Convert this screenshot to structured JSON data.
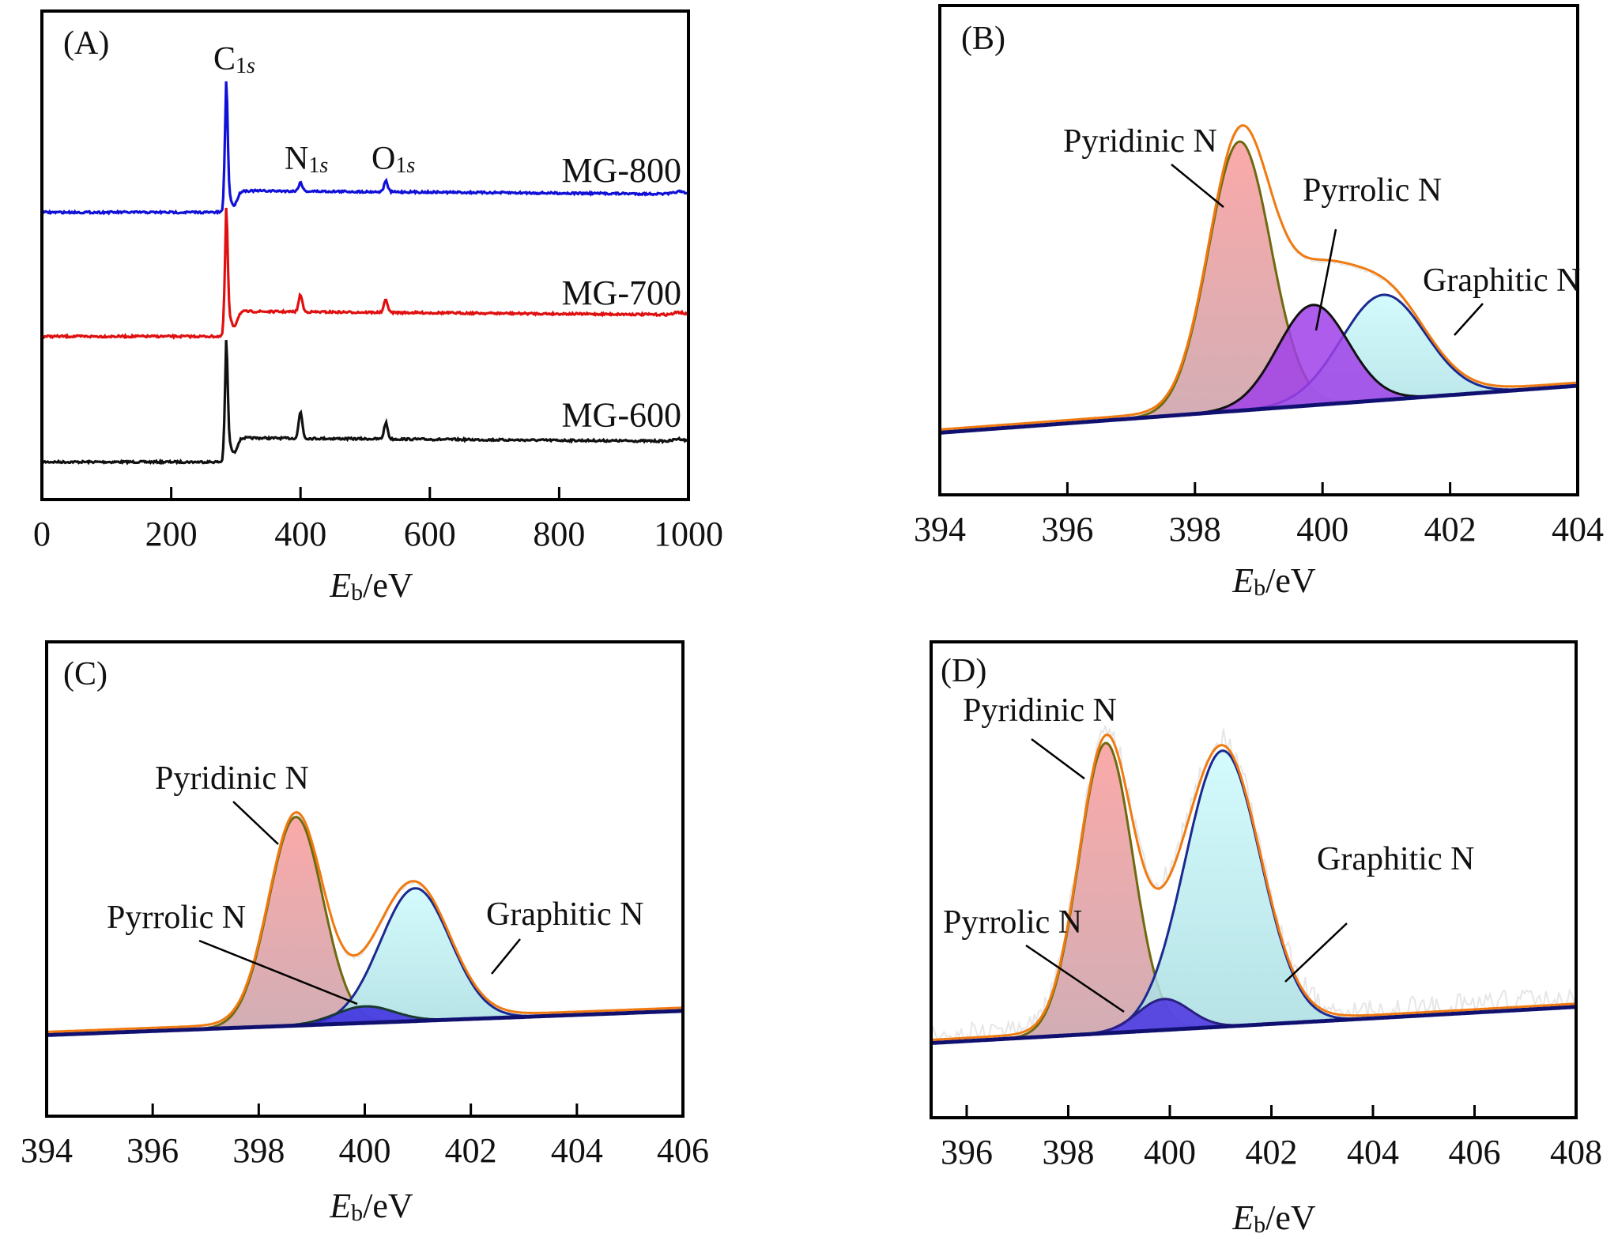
{
  "chart_data": [
    {
      "panel": "(A)",
      "type": "line",
      "title": "",
      "xlabel_main": "E",
      "xlabel_sub": "b",
      "xlabel_unit": "/eV",
      "ylabel": "",
      "xlim": [
        0,
        1000
      ],
      "xticks": [
        0,
        200,
        400,
        600,
        800,
        1000
      ],
      "yticks": [],
      "peak_labels": [
        {
          "main": "C",
          "sub": "1s",
          "x": 285
        },
        {
          "main": "N",
          "sub": "1s",
          "x": 400
        },
        {
          "main": "O",
          "sub": "1s",
          "x": 532
        }
      ],
      "series": [
        {
          "name": "MG-800",
          "color": "#1010d8",
          "baseline_low": 0.412,
          "baseline_high": 0.368,
          "c1s_peak": 0.143,
          "n1s_peak": 0.35,
          "o1s_peak": 0.346
        },
        {
          "name": "MG-700",
          "color": "#e01010",
          "baseline_low": 0.666,
          "baseline_high": 0.615,
          "c1s_peak": 0.402,
          "n1s_peak": 0.58,
          "o1s_peak": 0.589
        },
        {
          "name": "MG-600",
          "color": "#111111",
          "baseline_low": 0.923,
          "baseline_high": 0.874,
          "c1s_peak": 0.673,
          "n1s_peak": 0.82,
          "o1s_peak": 0.841
        }
      ],
      "peak_positions_eV": {
        "C1s": 285,
        "N1s": 400,
        "O1s": 532
      }
    },
    {
      "panel": "(B)",
      "type": "area",
      "xlabel_main": "E",
      "xlabel_sub": "b",
      "xlabel_unit": "/eV",
      "xlim": [
        394,
        404
      ],
      "xticks": [
        394,
        396,
        398,
        400,
        402,
        404
      ],
      "baseline": [
        0.873,
        0.777
      ],
      "envelope_color": "#f07a10",
      "components": [
        {
          "name": "Pyridinic N",
          "center": 398.7,
          "fwhm": 1.15,
          "height": 0.55,
          "fill": "#f59a9a",
          "stroke": "#6f6a10"
        },
        {
          "name": "Pyrrolic N",
          "center": 399.85,
          "fwhm": 1.3,
          "height": 0.205,
          "fill": "#a040e8",
          "stroke": "#111111"
        },
        {
          "name": "Graphitic N",
          "center": 400.95,
          "fwhm": 1.55,
          "height": 0.215,
          "fill": "#a8f0f0",
          "stroke": "#1a2a90"
        }
      ],
      "annotations": [
        {
          "text": "Pyridinic N",
          "component": "Pyridinic N"
        },
        {
          "text": "Pyrrolic N",
          "component": "Pyrrolic N"
        },
        {
          "text": "Graphitic N",
          "component": "Graphitic N"
        }
      ]
    },
    {
      "panel": "(C)",
      "type": "area",
      "xlabel_main": "E",
      "xlabel_sub": "b",
      "xlabel_unit": "/eV",
      "xlim": [
        394,
        406
      ],
      "xticks": [
        394,
        396,
        398,
        400,
        402,
        404,
        406
      ],
      "baseline": [
        0.829,
        0.778
      ],
      "envelope_color": "#f07a10",
      "components": [
        {
          "name": "Pyridinic N",
          "center": 398.7,
          "fwhm": 1.2,
          "height": 0.44,
          "fill": "#f59a9a",
          "stroke": "#6f6a10"
        },
        {
          "name": "Pyrrolic N",
          "center": 400.0,
          "fwhm": 1.3,
          "height": 0.035,
          "fill": "#3a28e0",
          "stroke": "#1a3a30"
        },
        {
          "name": "Graphitic N",
          "center": 400.95,
          "fwhm": 1.55,
          "height": 0.28,
          "fill": "#b8f4f4",
          "stroke": "#1a2a90"
        }
      ],
      "annotations": [
        {
          "text": "Pyridinic N",
          "component": "Pyridinic N"
        },
        {
          "text": "Pyrrolic N",
          "component": "Pyrrolic N"
        },
        {
          "text": "Graphitic N",
          "component": "Graphitic N"
        }
      ]
    },
    {
      "panel": "(D)",
      "type": "area",
      "xlabel_main": "E",
      "xlabel_sub": "b",
      "xlabel_unit": "/eV",
      "xlim": [
        395.3,
        408
      ],
      "xticks": [
        396,
        398,
        400,
        402,
        404,
        406,
        408
      ],
      "baseline": [
        0.843,
        0.767
      ],
      "envelope_color": "#f07a10",
      "components": [
        {
          "name": "Pyridinic N",
          "center": 398.74,
          "fwhm": 1.25,
          "height": 0.61,
          "fill": "#f59a9a",
          "stroke": "#6f6a10"
        },
        {
          "name": "Pyrrolic N",
          "center": 399.88,
          "fwhm": 1.2,
          "height": 0.065,
          "fill": "#4a30e0",
          "stroke": "#2a2080"
        },
        {
          "name": "Graphitic N",
          "center": 401.04,
          "fwhm": 1.75,
          "height": 0.58,
          "fill": "#c0f6f8",
          "stroke": "#1a2a90"
        }
      ],
      "annotations": [
        {
          "text": "Pyridinic N",
          "component": "Pyridinic N"
        },
        {
          "text": "Pyrrolic N",
          "component": "Pyrrolic N"
        },
        {
          "text": "Graphitic N",
          "component": "Graphitic N"
        }
      ]
    }
  ]
}
